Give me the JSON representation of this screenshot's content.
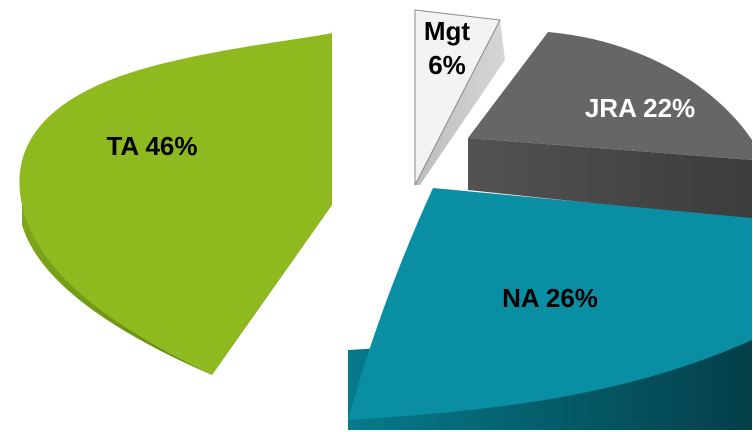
{
  "chart_data": {
    "type": "pie",
    "title": "",
    "style": "3d-exploded",
    "slices": [
      {
        "id": "ta",
        "label": "TA 46%",
        "lines": [
          "TA 46%"
        ],
        "name": "TA",
        "value": 46,
        "color_top": "#8fba1f",
        "color_side": "#6f9416",
        "color_dark": "#5a7a10",
        "label_color": "#000000"
      },
      {
        "id": "mgt",
        "label": "Mgt 6%",
        "lines": [
          "Mgt",
          "6%"
        ],
        "name": "Mgt",
        "value": 6,
        "color_top": "#f3f3f3",
        "color_side": "#c8c8c8",
        "color_dark": "#9a9a9a",
        "label_color": "#000000"
      },
      {
        "id": "jra",
        "label": "JRA 22%",
        "lines": [
          "JRA 22%"
        ],
        "name": "JRA",
        "value": 22,
        "color_top": "#666666",
        "color_side": "#4a4a4a",
        "color_dark": "#3a3a3a",
        "label_color": "#ffffff"
      },
      {
        "id": "na",
        "label": "NA 26%",
        "lines": [
          "NA 26%"
        ],
        "name": "NA",
        "value": 26,
        "color_top": "#0a8ea4",
        "color_side": "#066676",
        "color_dark": "#044e5a",
        "label_color": "#000000"
      }
    ]
  }
}
